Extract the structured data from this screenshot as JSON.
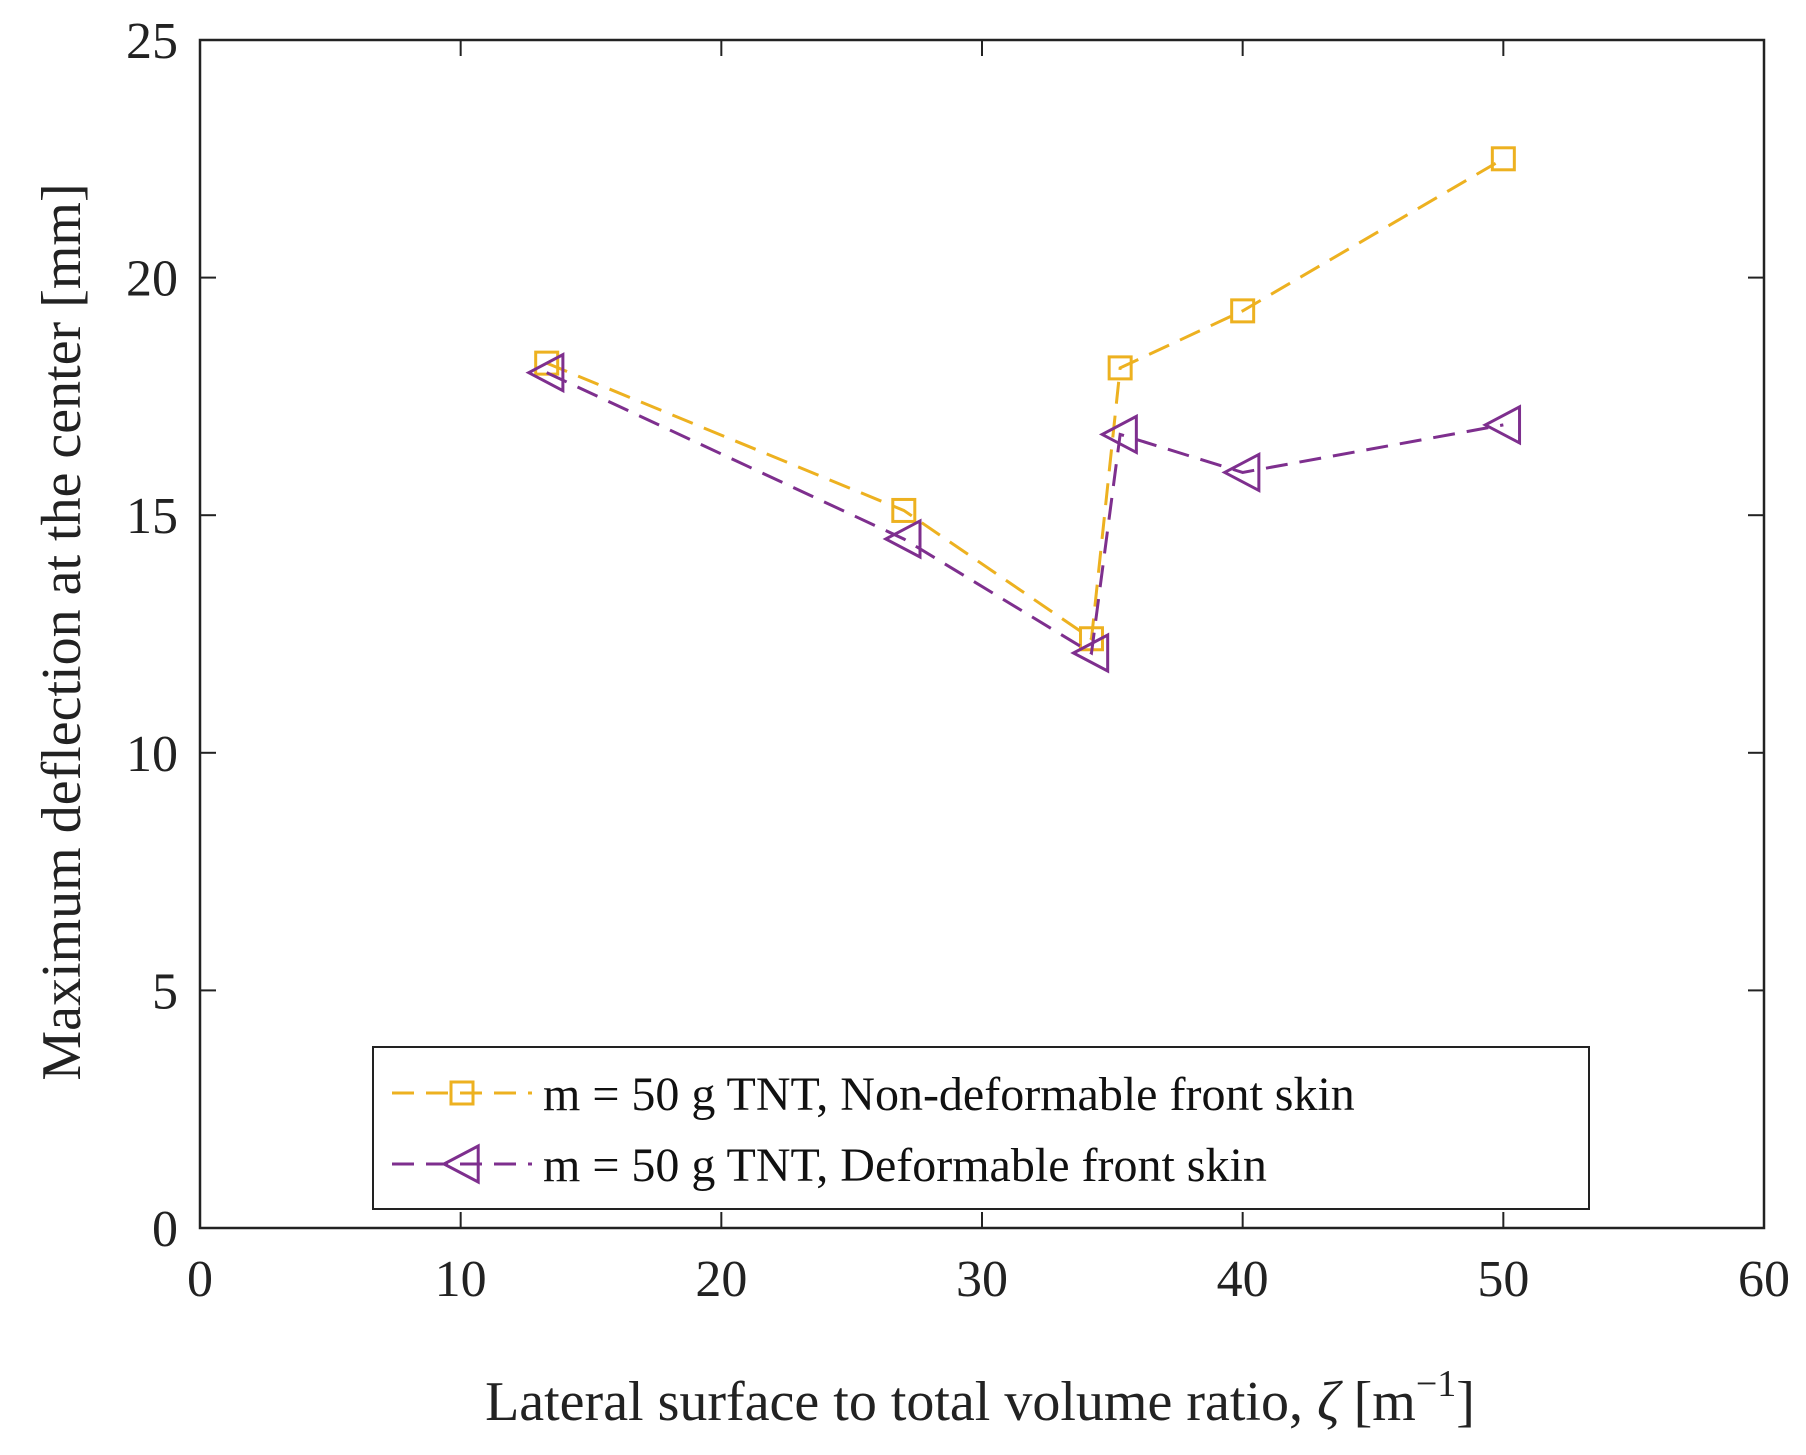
{
  "chart_data": {
    "type": "line",
    "xlabel": "Lateral surface to total volume ratio, ζ [m⁻¹]",
    "xlabel_main": "Lateral surface to total volume ratio, ",
    "xlabel_symbol": "ζ",
    "xlabel_unit_open": " [m",
    "xlabel_unit_sup": "−1",
    "xlabel_unit_close": "]",
    "ylabel": "Maximum deflection at the center [mm]",
    "xlim": [
      0,
      60
    ],
    "ylim": [
      0,
      25
    ],
    "xticks": [
      0,
      10,
      20,
      30,
      40,
      50,
      60
    ],
    "yticks": [
      0,
      5,
      10,
      15,
      20,
      25
    ],
    "grid": false,
    "legend_position": "bottom-center",
    "series": [
      {
        "name": "m = 50 g TNT, Non-deformable front skin",
        "color": "#EDB120",
        "marker": "square",
        "line_style": "dashed",
        "x": [
          13.3,
          27.0,
          34.2,
          35.3,
          40.0,
          50.0
        ],
        "y": [
          18.2,
          15.1,
          12.4,
          18.1,
          19.3,
          22.5
        ]
      },
      {
        "name": "m = 50 g TNT, Deformable front skin",
        "color": "#7E2F8E",
        "marker": "triangle-left",
        "line_style": "dashed",
        "x": [
          13.3,
          27.0,
          34.2,
          35.3,
          40.0,
          50.0
        ],
        "y": [
          18.0,
          14.5,
          12.1,
          16.7,
          15.9,
          16.9
        ]
      }
    ]
  }
}
